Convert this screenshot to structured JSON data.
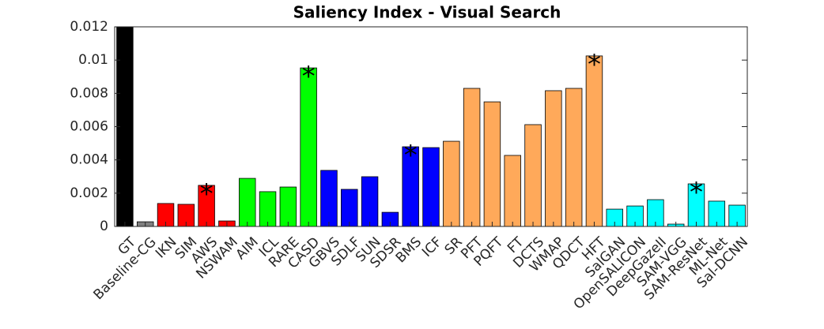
{
  "chart_data": {
    "type": "bar",
    "title": "Saliency Index - Visual Search",
    "categories": [
      "GT",
      "Baseline-CG",
      "IKN",
      "SIM",
      "AWS",
      "NSWAM",
      "AIM",
      "ICL",
      "RARE",
      "CASD",
      "GBVS",
      "SDLF",
      "SUN",
      "SDSR",
      "BMS",
      "ICF",
      "SR",
      "PFT",
      "PQFT",
      "FT",
      "DCTS",
      "WMAP",
      "QDCT",
      "HFT",
      "SalGAN",
      "OpenSALICON",
      "DeepGazeII",
      "SAM-VGG",
      "SAM-ResNet",
      "ML-Net",
      "Sal-DCNN"
    ],
    "values": [
      0.012,
      0.00028,
      0.00138,
      0.00133,
      0.00247,
      0.00033,
      0.00289,
      0.00209,
      0.00237,
      0.00953,
      0.00337,
      0.00223,
      0.00299,
      0.00085,
      0.00479,
      0.00474,
      0.00512,
      0.0083,
      0.00749,
      0.00427,
      0.00612,
      0.00816,
      0.0083,
      0.01025,
      0.00104,
      0.00123,
      0.00161,
      0.00014,
      0.00256,
      0.00152,
      0.00128
    ],
    "colors": [
      "#000000",
      "#808080",
      "#ff0000",
      "#ff0000",
      "#ff0000",
      "#ff0000",
      "#00ff00",
      "#00ff00",
      "#00ff00",
      "#00ff00",
      "#0000ff",
      "#0000ff",
      "#0000ff",
      "#0000ff",
      "#0000ff",
      "#0000ff",
      "#ffa95a",
      "#ffa95a",
      "#ffa95a",
      "#ffa95a",
      "#ffa95a",
      "#ffa95a",
      "#ffa95a",
      "#ffa95a",
      "#00ffff",
      "#00ffff",
      "#00ffff",
      "#00ffff",
      "#00ffff",
      "#00ffff",
      "#00ffff"
    ],
    "annotations": [
      {
        "text": "*",
        "x": "AWS"
      },
      {
        "text": "*",
        "x": "CASD"
      },
      {
        "text": "*",
        "x": "BMS"
      },
      {
        "text": "*",
        "x": "HFT"
      },
      {
        "text": "*",
        "x": "SAM-ResNet"
      }
    ],
    "ylim": [
      0,
      0.012
    ],
    "yticks": [
      0,
      0.002,
      0.004,
      0.006,
      0.008,
      0.01,
      0.012
    ],
    "grid": false
  }
}
